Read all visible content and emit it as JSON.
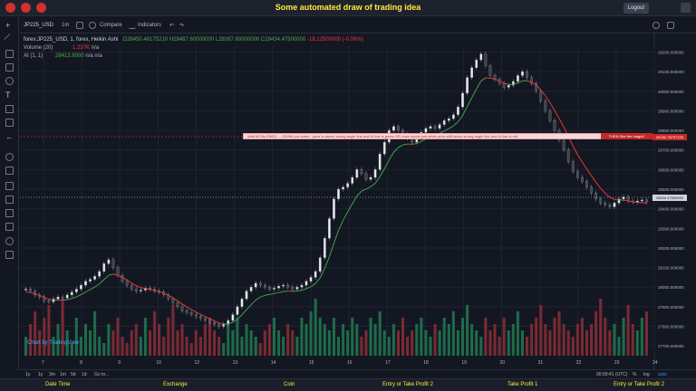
{
  "app": {
    "title": "Some automated draw of trading idea",
    "logout_label": "Logout"
  },
  "toolbar": {
    "symbol": "JP225_USD",
    "interval": "1m",
    "compare_label": "Compare",
    "indicators_label": "Indicators"
  },
  "legend": {
    "series": "forex:JP225_USD, 1, forex, Heikin Ashi",
    "o": "O28450.48175210",
    "h": "H28487.60000000",
    "l": "L28387.60000000",
    "c": "C28434.47500000",
    "change": "-18.12500000 (-0.06%)",
    "volume_label": "Volume (20)",
    "volume_value": "1.237K",
    "volume_na": "n/a",
    "ai_label": "AI (1, 1)",
    "ai_value": "28413.8000",
    "ai_na1": "n/a",
    "ai_na2": "n/a"
  },
  "info_band": {
    "text": "Wait till Dip ENDS  →  DRAW just when : price is above strong angle line and AI line is green        OR        draw shorts just when price still below strong angle line and AI line is red",
    "magic": "THEN See the magic!!",
    "price_tag": "28782.78757226",
    "current_tag": "28434.47500000"
  },
  "watermark": "Chart by TradingView",
  "bottom": {
    "ranges": [
      "1y",
      "1y",
      "3m",
      "1m",
      "5d",
      "1d",
      "Go to..."
    ],
    "time": "00:59:41 (UTC)",
    "pct": "%",
    "log": "log",
    "auto": "auto"
  },
  "footer": {
    "labels": [
      "Date Time",
      "Exchange",
      "Coin",
      "Entry or Take Profit 2",
      "Take Profit 1",
      "Entry or Take Profit 2"
    ]
  },
  "chart_data": {
    "type": "line",
    "candle_style": "heikin-ashi",
    "x_ticks": [
      "7",
      "8",
      "9",
      "10",
      "12",
      "13",
      "14",
      "15",
      "16",
      "17",
      "18",
      "19",
      "20",
      "21",
      "22",
      "23",
      "24"
    ],
    "y_ticks": [
      27700,
      27800,
      27900,
      28000,
      28100,
      28200,
      28300,
      28400,
      28500,
      28600,
      28700,
      28800,
      28900,
      29000,
      29100,
      29200
    ],
    "ylim": [
      27650,
      29230
    ],
    "close": [
      27990,
      27980,
      27960,
      27950,
      27930,
      27925,
      27940,
      27950,
      27945,
      27960,
      27975,
      27990,
      28010,
      28030,
      28040,
      28055,
      28080,
      28120,
      28140,
      28100,
      28060,
      28030,
      28010,
      27990,
      27980,
      27985,
      27995,
      27990,
      27980,
      27975,
      27960,
      27940,
      27920,
      27900,
      27880,
      27870,
      27860,
      27850,
      27840,
      27830,
      27820,
      27810,
      27800,
      27810,
      27830,
      27860,
      27900,
      27940,
      27980,
      28000,
      28020,
      28010,
      28000,
      27990,
      27995,
      28005,
      28010,
      28000,
      27990,
      28000,
      28010,
      28030,
      28050,
      28080,
      28150,
      28250,
      28350,
      28450,
      28500,
      28510,
      28530,
      28560,
      28600,
      28580,
      28550,
      28560,
      28600,
      28680,
      28740,
      28800,
      28820,
      28800,
      28780,
      28760,
      28740,
      28760,
      28790,
      28810,
      28820,
      28810,
      28830,
      28850,
      28860,
      28880,
      28920,
      28990,
      29070,
      29120,
      29160,
      29190,
      29130,
      29080,
      29060,
      29040,
      29020,
      29030,
      29050,
      29080,
      29100,
      29070,
      29040,
      29000,
      28950,
      28900,
      28850,
      28800,
      28750,
      28700,
      28640,
      28590,
      28560,
      28540,
      28510,
      28480,
      28450,
      28430,
      28420,
      28410,
      28430,
      28450,
      28460,
      28440,
      28435,
      28440,
      28445,
      28434
    ],
    "volume": [
      0.3,
      0.5,
      0.7,
      0.4,
      0.6,
      0.8,
      0.3,
      0.5,
      0.9,
      0.4,
      0.2,
      0.6,
      0.3,
      0.5,
      0.4,
      0.7,
      0.3,
      0.2,
      0.5,
      0.4,
      0.6,
      0.3,
      0.2,
      0.4,
      0.5,
      0.3,
      0.6,
      0.4,
      0.7,
      0.5,
      0.3,
      0.6,
      0.8,
      0.4,
      0.5,
      0.3,
      0.2,
      0.4,
      0.3,
      0.5,
      0.6,
      0.4,
      0.3,
      0.2,
      0.5,
      0.4,
      0.6,
      0.3,
      0.5,
      0.4,
      0.3,
      0.2,
      0.4,
      0.5,
      0.6,
      0.4,
      0.3,
      0.5,
      0.4,
      0.3,
      0.6,
      0.5,
      0.7,
      0.9,
      0.6,
      0.5,
      0.4,
      0.6,
      0.3,
      0.5,
      0.4,
      0.6,
      0.5,
      0.3,
      0.4,
      0.6,
      0.5,
      0.7,
      0.4,
      0.3,
      0.5,
      0.4,
      0.6,
      0.3,
      0.4,
      0.5,
      0.6,
      0.4,
      0.3,
      0.5,
      0.4,
      0.6,
      0.5,
      0.7,
      0.4,
      0.6,
      0.8,
      0.5,
      0.4,
      0.3,
      0.6,
      0.4,
      0.5,
      0.3,
      0.6,
      0.4,
      0.5,
      0.7,
      0.4,
      0.3,
      0.5,
      0.6,
      0.8,
      0.5,
      0.4,
      0.6,
      0.7,
      0.5,
      0.4,
      0.3,
      0.5,
      0.6,
      0.4,
      0.5,
      0.7,
      0.9,
      0.6,
      0.4,
      0.5,
      0.3,
      0.6,
      0.8,
      0.5,
      0.4,
      0.6,
      0.7
    ]
  },
  "colors": {
    "up": "#26a69a",
    "down": "#ef5350",
    "volume_up": "#1e6b4a",
    "volume_down": "#7a2a33",
    "angle_red": "#e53935",
    "angle_green": "#43a047",
    "wick": "#ffffff"
  }
}
